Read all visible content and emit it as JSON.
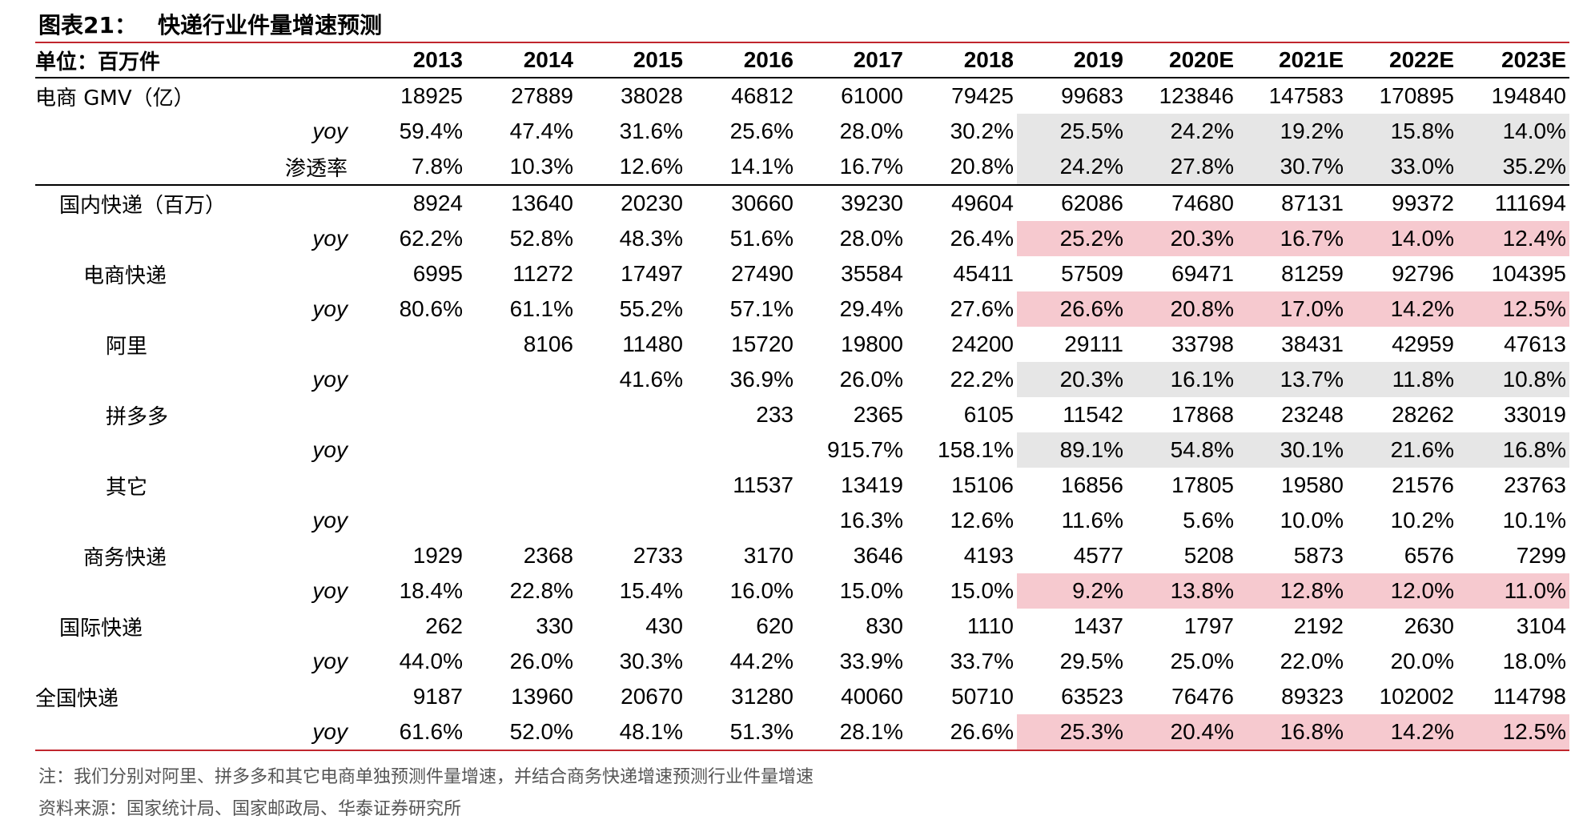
{
  "title": {
    "label": "图表21：",
    "text": "快递行业件量增速预测"
  },
  "header": {
    "unit": "单位：百万件",
    "years": [
      "2013",
      "2014",
      "2015",
      "2016",
      "2017",
      "2018",
      "2019",
      "2020E",
      "2021E",
      "2022E",
      "2023E"
    ]
  },
  "rows": [
    {
      "label": "电商 GMV（亿）",
      "indent": 0,
      "values": [
        "18925",
        "27889",
        "38028",
        "46812",
        "61000",
        "79425",
        "99683",
        "123846",
        "147583",
        "170895",
        "194840"
      ],
      "hl": ""
    },
    {
      "label": "yoy",
      "type": "yoy",
      "values": [
        "59.4%",
        "47.4%",
        "31.6%",
        "25.6%",
        "28.0%",
        "30.2%",
        "25.5%",
        "24.2%",
        "19.2%",
        "15.8%",
        "14.0%"
      ],
      "hl": "gray"
    },
    {
      "label": "渗透率",
      "type": "right",
      "values": [
        "7.8%",
        "10.3%",
        "12.6%",
        "14.1%",
        "16.7%",
        "20.8%",
        "24.2%",
        "27.8%",
        "30.7%",
        "33.0%",
        "35.2%"
      ],
      "hl": "gray"
    },
    {
      "label": "国内快递（百万）",
      "indent": 1,
      "sep": true,
      "values": [
        "8924",
        "13640",
        "20230",
        "30660",
        "39230",
        "49604",
        "62086",
        "74680",
        "87131",
        "99372",
        "111694"
      ],
      "hl": ""
    },
    {
      "label": "yoy",
      "type": "yoy",
      "values": [
        "62.2%",
        "52.8%",
        "48.3%",
        "51.6%",
        "28.0%",
        "26.4%",
        "25.2%",
        "20.3%",
        "16.7%",
        "14.0%",
        "12.4%"
      ],
      "hl": "pink"
    },
    {
      "label": "电商快递",
      "indent": 2,
      "values": [
        "6995",
        "11272",
        "17497",
        "27490",
        "35584",
        "45411",
        "57509",
        "69471",
        "81259",
        "92796",
        "104395"
      ],
      "hl": ""
    },
    {
      "label": "yoy",
      "type": "yoy",
      "values": [
        "80.6%",
        "61.1%",
        "55.2%",
        "57.1%",
        "29.4%",
        "27.6%",
        "26.6%",
        "20.8%",
        "17.0%",
        "14.2%",
        "12.5%"
      ],
      "hl": "pink"
    },
    {
      "label": "阿里",
      "indent": 3,
      "values": [
        "",
        "8106",
        "11480",
        "15720",
        "19800",
        "24200",
        "29111",
        "33798",
        "38431",
        "42959",
        "47613"
      ],
      "hl": ""
    },
    {
      "label": "yoy",
      "type": "yoy",
      "values": [
        "",
        "",
        "41.6%",
        "36.9%",
        "26.0%",
        "22.2%",
        "20.3%",
        "16.1%",
        "13.7%",
        "11.8%",
        "10.8%"
      ],
      "hl": "gray"
    },
    {
      "label": "拼多多",
      "indent": 3,
      "values": [
        "",
        "",
        "",
        "233",
        "2365",
        "6105",
        "11542",
        "17868",
        "23248",
        "28262",
        "33019"
      ],
      "hl": ""
    },
    {
      "label": "yoy",
      "type": "yoy",
      "values": [
        "",
        "",
        "",
        "",
        "915.7%",
        "158.1%",
        "89.1%",
        "54.8%",
        "30.1%",
        "21.6%",
        "16.8%"
      ],
      "hl": "gray"
    },
    {
      "label": "其它",
      "indent": 3,
      "values": [
        "",
        "",
        "",
        "11537",
        "13419",
        "15106",
        "16856",
        "17805",
        "19580",
        "21576",
        "23763"
      ],
      "hl": ""
    },
    {
      "label": "yoy",
      "type": "yoy",
      "values": [
        "",
        "",
        "",
        "",
        "16.3%",
        "12.6%",
        "11.6%",
        "5.6%",
        "10.0%",
        "10.2%",
        "10.1%"
      ],
      "hl": ""
    },
    {
      "label": "商务快递",
      "indent": 2,
      "values": [
        "1929",
        "2368",
        "2733",
        "3170",
        "3646",
        "4193",
        "4577",
        "5208",
        "5873",
        "6576",
        "7299"
      ],
      "hl": ""
    },
    {
      "label": "yoy",
      "type": "yoy",
      "values": [
        "18.4%",
        "22.8%",
        "15.4%",
        "16.0%",
        "15.0%",
        "15.0%",
        "9.2%",
        "13.8%",
        "12.8%",
        "12.0%",
        "11.0%"
      ],
      "hl": "pink"
    },
    {
      "label": "国际快递",
      "indent": 1,
      "values": [
        "262",
        "330",
        "430",
        "620",
        "830",
        "1110",
        "1437",
        "1797",
        "2192",
        "2630",
        "3104"
      ],
      "hl": ""
    },
    {
      "label": "yoy",
      "type": "yoy",
      "values": [
        "44.0%",
        "26.0%",
        "30.3%",
        "44.2%",
        "33.9%",
        "33.7%",
        "29.5%",
        "25.0%",
        "22.0%",
        "20.0%",
        "18.0%"
      ],
      "hl": ""
    },
    {
      "label": "全国快递",
      "indent": 0,
      "values": [
        "9187",
        "13960",
        "20670",
        "31280",
        "40060",
        "50710",
        "63523",
        "76476",
        "89323",
        "102002",
        "114798"
      ],
      "hl": ""
    },
    {
      "label": "yoy",
      "type": "yoy",
      "values": [
        "61.6%",
        "52.0%",
        "48.1%",
        "51.3%",
        "28.1%",
        "26.6%",
        "25.3%",
        "20.4%",
        "16.8%",
        "14.2%",
        "12.5%"
      ],
      "hl": "pink"
    }
  ],
  "highlight_from_col": 6,
  "colors": {
    "rule": "#c0262d",
    "gray": "#e6e6e6",
    "pink": "#f6c9cf"
  },
  "note": "注：我们分别对阿里、拼多多和其它电商单独预测件量增速，并结合商务快递增速预测行业件量增速",
  "source": "资料来源：国家统计局、国家邮政局、华泰证券研究所"
}
